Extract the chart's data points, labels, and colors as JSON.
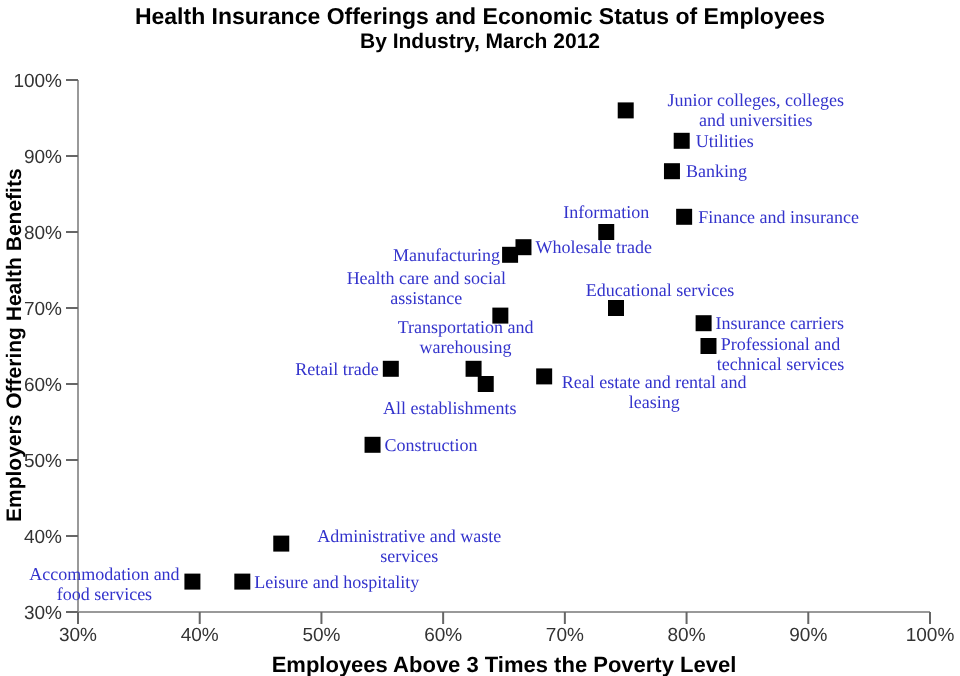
{
  "chart_data": {
    "type": "scatter",
    "title": "Health Insurance Offerings and Economic Status of Employees",
    "subtitle": "By Industry, March 2012",
    "xlabel": "Employees Above 3 Times the Poverty Level",
    "ylabel": "Employers Offering Health Benefits",
    "series": [
      {
        "color": "#000000",
        "x": [
          75,
          79.6,
          78.8,
          79.8,
          73.4,
          66.6,
          65.5,
          64.7,
          74.2,
          81.4,
          81.8,
          55.7,
          62.5,
          63.5,
          68.3,
          54.2,
          46.7,
          43.5,
          39.4
        ],
        "values": [
          96,
          92,
          88,
          82,
          80,
          78,
          77,
          69,
          70,
          68,
          65,
          62,
          62,
          60,
          61,
          52,
          39,
          34,
          34
        ]
      }
    ],
    "annotations": [
      {
        "text": "Junior colleges, colleges and universities",
        "x": 75,
        "y": 96
      },
      {
        "text": "Utilities",
        "x": 79.6,
        "y": 92
      },
      {
        "text": "Banking",
        "x": 78.8,
        "y": 88
      },
      {
        "text": "Finance and insurance",
        "x": 79.8,
        "y": 82
      },
      {
        "text": "Information",
        "x": 73.4,
        "y": 80
      },
      {
        "text": "Wholesale trade",
        "x": 66.6,
        "y": 78
      },
      {
        "text": "Manufacturing",
        "x": 65.5,
        "y": 77
      },
      {
        "text": "Health care and social assistance",
        "x": 64.7,
        "y": 69
      },
      {
        "text": "Educational services",
        "x": 74.2,
        "y": 70
      },
      {
        "text": "Insurance carriers",
        "x": 81.4,
        "y": 68
      },
      {
        "text": "Professional and technical services",
        "x": 81.8,
        "y": 65
      },
      {
        "text": "Retail trade",
        "x": 55.7,
        "y": 62
      },
      {
        "text": "Transportation and warehousing",
        "x": 62.5,
        "y": 62
      },
      {
        "text": "All establishments",
        "x": 63.5,
        "y": 60
      },
      {
        "text": "Real estate and rental and leasing",
        "x": 68.3,
        "y": 61
      },
      {
        "text": "Construction",
        "x": 54.2,
        "y": 52
      },
      {
        "text": "Administrative and waste services",
        "x": 46.7,
        "y": 39
      },
      {
        "text": "Leisure and hospitality",
        "x": 43.5,
        "y": 34
      },
      {
        "text": "Accommodation and food services",
        "x": 39.4,
        "y": 34
      }
    ],
    "xlim": [
      30,
      100
    ],
    "ylim": [
      30,
      100
    ],
    "xticks": [
      {
        "value": 30,
        "label": "30%"
      },
      {
        "value": 40,
        "label": "40%"
      },
      {
        "value": 50,
        "label": "50%"
      },
      {
        "value": 60,
        "label": "60%"
      },
      {
        "value": 70,
        "label": "70%"
      },
      {
        "value": 80,
        "label": "80%"
      },
      {
        "value": 90,
        "label": "90%"
      },
      {
        "value": 100,
        "label": "100%"
      }
    ],
    "yticks": [
      {
        "value": 30,
        "label": "30%"
      },
      {
        "value": 40,
        "label": "40%"
      },
      {
        "value": 50,
        "label": "50%"
      },
      {
        "value": 60,
        "label": "60%"
      },
      {
        "value": 70,
        "label": "70%"
      },
      {
        "value": 80,
        "label": "80%"
      },
      {
        "value": 90,
        "label": "90%"
      },
      {
        "value": 100,
        "label": "100%"
      }
    ],
    "marker": "square",
    "grid": false,
    "legend": false
  }
}
